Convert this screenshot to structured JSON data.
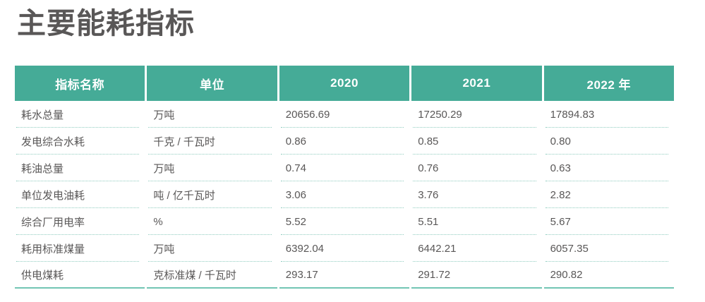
{
  "page": {
    "title": "主要能耗指标"
  },
  "table": {
    "columns": [
      "指标名称",
      "单位",
      "2020",
      "2021",
      "2022 年"
    ],
    "rows": [
      [
        "耗水总量",
        "万吨",
        "20656.69",
        "17250.29",
        "17894.83"
      ],
      [
        "发电综合水耗",
        "千克 / 千瓦时",
        "0.86",
        "0.85",
        "0.80"
      ],
      [
        "耗油总量",
        "万吨",
        "0.74",
        "0.76",
        "0.63"
      ],
      [
        "单位发电油耗",
        "吨 / 亿千瓦时",
        "3.06",
        "3.76",
        "2.82"
      ],
      [
        "综合厂用电率",
        "%",
        "5.52",
        "5.51",
        "5.67"
      ],
      [
        "耗用标准煤量",
        "万吨",
        "6392.04",
        "6442.21",
        "6057.35"
      ],
      [
        "供电煤耗",
        "克标准煤 / 千瓦时",
        "293.17",
        "291.72",
        "290.82"
      ]
    ]
  },
  "colors": {
    "page-bg": "#ffffff",
    "title-text": "#595757",
    "header-bg": "#45ab97",
    "header-text": "#ffffff",
    "body-text": "#595757",
    "row-divider": "#8fccbf",
    "table-bottom-border": "#72c5b4"
  }
}
